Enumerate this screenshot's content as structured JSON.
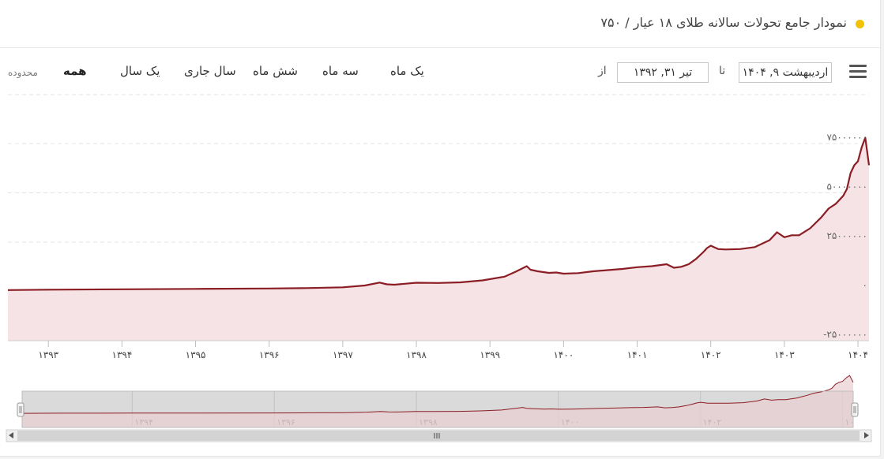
{
  "title": "نمودار جامع تحولات سالانه طلای ۱۸ عیار / ۷۵۰",
  "colors": {
    "line": "#8b1d24",
    "area": "#f6e3e5",
    "accent_dot": "#f2c200",
    "grid": "#e3e3e3",
    "navigator_bg": "#dadada"
  },
  "toolbar": {
    "menu_icon": "hamburger-menu-icon",
    "to_date": "اردیبهشت ۹, ۱۴۰۴",
    "to_label": "تا",
    "from_date": "تیر ۳۱, ۱۳۹۲",
    "from_label": "از",
    "ranges": [
      "یک ماه",
      "سه ماه",
      "شش ماه",
      "سال جاری",
      "یک سال",
      "همه"
    ],
    "selected_range": "همه",
    "range_caption": "محدوده"
  },
  "chart_data": {
    "type": "area",
    "y_ticks": [
      "۷۵۰۰۰۰۰۰",
      "۵۰۰۰۰۰۰۰",
      "۲۵۰۰۰۰۰۰",
      "۰",
      "-۲۵۰۰۰۰۰۰"
    ],
    "y_tick_values": [
      75000000,
      50000000,
      25000000,
      0,
      -25000000
    ],
    "ylim": [
      -25000000,
      75000000
    ],
    "x_ticks": [
      "۱۳۹۳",
      "۱۳۹۴",
      "۱۳۹۵",
      "۱۳۹۶",
      "۱۳۹۷",
      "۱۳۹۸",
      "۱۳۹۹",
      "۱۴۰۰",
      "۱۴۰۱",
      "۱۴۰۲",
      "۱۴۰۳",
      "۱۴۰۴"
    ],
    "x_tick_values": [
      1393,
      1394,
      1395,
      1396,
      1397,
      1398,
      1399,
      1400,
      1401,
      1402,
      1403,
      1404
    ],
    "xlim": [
      1392.45,
      1404.15
    ],
    "series": [
      {
        "x": [
          1392.45,
          1393.0,
          1394.0,
          1395.0,
          1396.0,
          1396.5,
          1397.0,
          1397.3,
          1397.5,
          1397.6,
          1397.7,
          1398.0,
          1398.3,
          1398.6,
          1398.9,
          1399.2,
          1399.35,
          1399.5,
          1399.55,
          1399.65,
          1399.8,
          1399.9,
          1400.0,
          1400.2,
          1400.4,
          1400.6,
          1400.8,
          1401.0,
          1401.2,
          1401.4,
          1401.5,
          1401.6,
          1401.7,
          1401.8,
          1401.9,
          1401.95,
          1402.0,
          1402.1,
          1402.2,
          1402.4,
          1402.6,
          1402.8,
          1402.9,
          1403.0,
          1403.1,
          1403.2,
          1403.35,
          1403.5,
          1403.6,
          1403.7,
          1403.8,
          1403.85,
          1403.9,
          1403.95,
          1404.0,
          1404.05,
          1404.1,
          1404.15
        ],
        "y": [
          700000,
          900000,
          1100000,
          1300000,
          1500000,
          1700000,
          2100000,
          3000000,
          4500000,
          3600000,
          3400000,
          4400000,
          4300000,
          4600000,
          5600000,
          7500000,
          10000000,
          12800000,
          11000000,
          10200000,
          9400000,
          9600000,
          9000000,
          9300000,
          10200000,
          10800000,
          11400000,
          12300000,
          12800000,
          13800000,
          12000000,
          12500000,
          13800000,
          16500000,
          20000000,
          22000000,
          23200000,
          21500000,
          21300000,
          21500000,
          22500000,
          26000000,
          30000000,
          27500000,
          28500000,
          28500000,
          32000000,
          37500000,
          42000000,
          44500000,
          48500000,
          52000000,
          60000000,
          64000000,
          66000000,
          73000000,
          78000000,
          64000000
        ]
      }
    ],
    "navigator": {
      "x_ticks": [
        "۱۳۹۴",
        "۱۳۹۶",
        "۱۳۹۸",
        "۱۴۰۰",
        "۱۴۰۲",
        "۱۰"
      ],
      "x_tick_values": [
        1394,
        1396,
        1398,
        1400,
        1402,
        1404
      ]
    }
  }
}
